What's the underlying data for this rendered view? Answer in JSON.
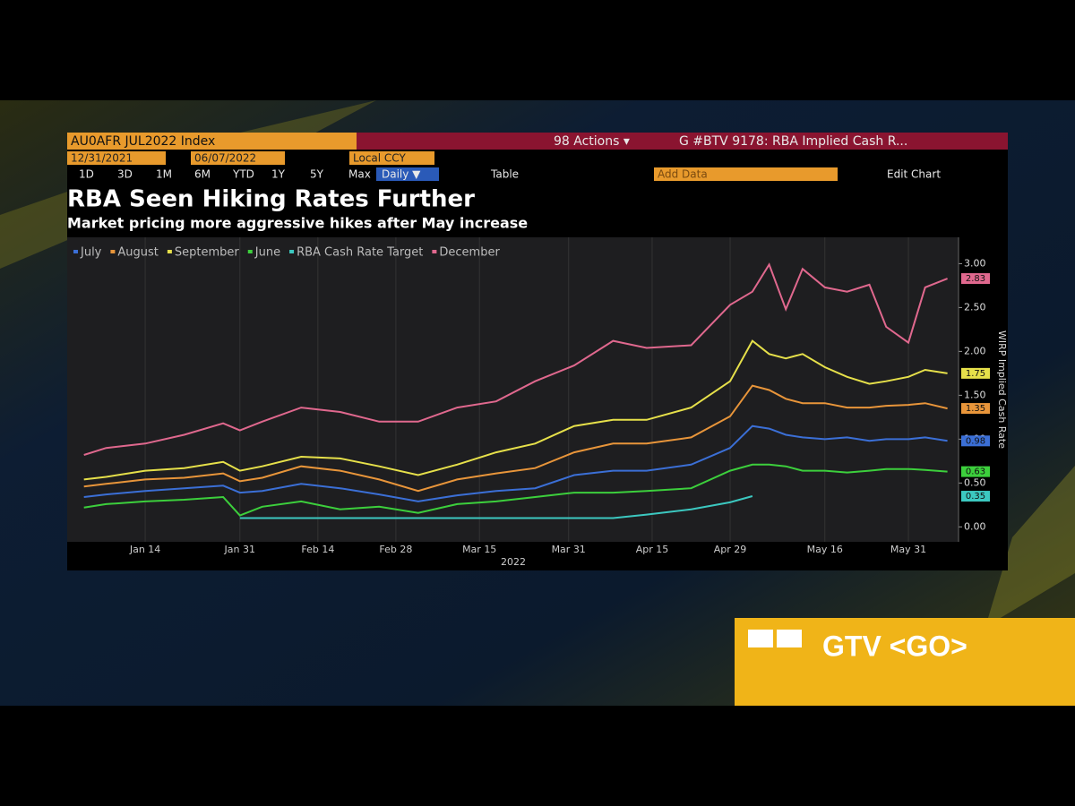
{
  "toolbar": {
    "security": "AU0AFR JUL2022 Index",
    "actions": "98 Actions ▾",
    "chart_name": "G #BTV 9178: RBA Implied Cash R...",
    "start_date": "12/31/2021",
    "end_date": "06/07/2022",
    "currency": "Local CCY",
    "periods": [
      "1D",
      "3D",
      "1M",
      "6M",
      "YTD",
      "1Y",
      "5Y",
      "Max"
    ],
    "frequency": "Daily ▼",
    "table": "Table",
    "add_data": "Add Data",
    "edit_chart": "Edit Chart"
  },
  "banner": "GTV <GO>",
  "chart_data": {
    "type": "line",
    "title": "RBA Seen Hiking Rates Further",
    "subtitle": "Market pricing more aggressive hikes after May increase",
    "ylabel": "WIRP Implied Cash Rate",
    "xlabel": "2022",
    "x": [
      "2022-01-03",
      "2022-01-07",
      "2022-01-14",
      "2022-01-21",
      "2022-01-28",
      "2022-01-31",
      "2022-02-04",
      "2022-02-11",
      "2022-02-18",
      "2022-02-25",
      "2022-03-04",
      "2022-03-11",
      "2022-03-18",
      "2022-03-25",
      "2022-04-01",
      "2022-04-08",
      "2022-04-14",
      "2022-04-22",
      "2022-04-29",
      "2022-05-03",
      "2022-05-06",
      "2022-05-09",
      "2022-05-12",
      "2022-05-16",
      "2022-05-20",
      "2022-05-24",
      "2022-05-27",
      "2022-05-31",
      "2022-06-03",
      "2022-06-07"
    ],
    "series": [
      {
        "name": "July",
        "color": "#3b6fd6",
        "values": [
          0.34,
          0.37,
          0.41,
          0.44,
          0.47,
          0.39,
          0.41,
          0.49,
          0.44,
          0.37,
          0.29,
          0.36,
          0.41,
          0.44,
          0.59,
          0.64,
          0.64,
          0.71,
          0.9,
          1.15,
          1.12,
          1.05,
          1.02,
          1.0,
          1.02,
          0.98,
          1.0,
          1.0,
          1.02,
          0.98
        ]
      },
      {
        "name": "August",
        "color": "#e8953a",
        "values": [
          0.46,
          0.49,
          0.54,
          0.56,
          0.61,
          0.52,
          0.56,
          0.69,
          0.64,
          0.54,
          0.41,
          0.54,
          0.61,
          0.67,
          0.85,
          0.95,
          0.95,
          1.02,
          1.26,
          1.61,
          1.56,
          1.46,
          1.41,
          1.41,
          1.36,
          1.36,
          1.38,
          1.39,
          1.41,
          1.35
        ]
      },
      {
        "name": "September",
        "color": "#e6e04a",
        "values": [
          0.54,
          0.57,
          0.64,
          0.67,
          0.74,
          0.64,
          0.69,
          0.8,
          0.78,
          0.69,
          0.59,
          0.71,
          0.85,
          0.95,
          1.15,
          1.22,
          1.22,
          1.36,
          1.66,
          2.12,
          1.97,
          1.92,
          1.97,
          1.82,
          1.71,
          1.63,
          1.66,
          1.71,
          1.79,
          1.75
        ]
      },
      {
        "name": "June",
        "color": "#3ccf3c",
        "values": [
          0.22,
          0.26,
          0.29,
          0.31,
          0.34,
          0.13,
          0.23,
          0.29,
          0.2,
          0.23,
          0.16,
          0.26,
          0.29,
          0.34,
          0.39,
          0.39,
          0.41,
          0.44,
          0.64,
          0.71,
          0.71,
          0.69,
          0.64,
          0.64,
          0.62,
          0.64,
          0.66,
          0.66,
          0.65,
          0.63
        ]
      },
      {
        "name": "RBA Cash Rate Target",
        "color": "#3cc8c0",
        "values": [
          null,
          null,
          null,
          null,
          null,
          0.1,
          0.1,
          0.1,
          0.1,
          0.1,
          0.1,
          0.1,
          0.1,
          0.1,
          0.1,
          0.1,
          0.14,
          0.2,
          0.28,
          0.35,
          null,
          null,
          null,
          null,
          null,
          null,
          null,
          null,
          null,
          null
        ]
      },
      {
        "name": "December",
        "color": "#e0688e",
        "values": [
          0.82,
          0.9,
          0.95,
          1.05,
          1.18,
          1.1,
          1.2,
          1.36,
          1.31,
          1.2,
          1.2,
          1.36,
          1.43,
          1.66,
          1.84,
          2.12,
          2.04,
          2.07,
          2.53,
          2.68,
          2.99,
          2.48,
          2.94,
          2.73,
          2.68,
          2.76,
          2.28,
          2.1,
          2.73,
          2.83
        ]
      }
    ],
    "xlim": [
      "2021-12-31",
      "2022-06-09"
    ],
    "xticks": [
      {
        "value": "2022-01-14",
        "label": "Jan 14"
      },
      {
        "value": "2022-01-31",
        "label": "Jan 31"
      },
      {
        "value": "2022-02-14",
        "label": "Feb 14"
      },
      {
        "value": "2022-02-28",
        "label": "Feb 28"
      },
      {
        "value": "2022-03-15",
        "label": "Mar 15"
      },
      {
        "value": "2022-03-31",
        "label": "Mar 31"
      },
      {
        "value": "2022-04-15",
        "label": "Apr 15"
      },
      {
        "value": "2022-04-29",
        "label": "Apr 29"
      },
      {
        "value": "2022-05-16",
        "label": "May 16"
      },
      {
        "value": "2022-05-31",
        "label": "May 31"
      }
    ],
    "ylim": [
      -0.17,
      3.3
    ],
    "yticks": [
      {
        "value": 0,
        "label": "0.00"
      },
      {
        "value": 0.5,
        "label": "0.50"
      },
      {
        "value": 1,
        "label": "1.00"
      },
      {
        "value": 1.5,
        "label": "1.50"
      },
      {
        "value": 2,
        "label": "2.00"
      },
      {
        "value": 2.5,
        "label": "2.50"
      },
      {
        "value": 3,
        "label": "3.00"
      }
    ],
    "grid": true
  }
}
